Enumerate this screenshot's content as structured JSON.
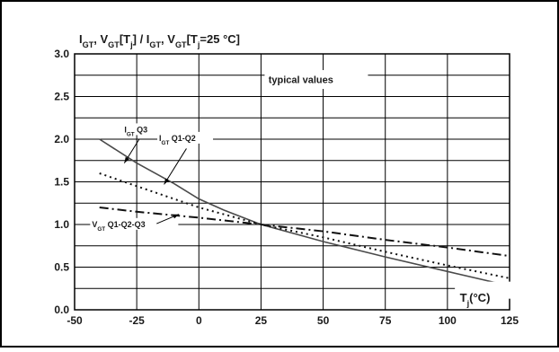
{
  "chart_data": {
    "type": "line",
    "title": {
      "parts": [
        {
          "t": "I",
          "s": false
        },
        {
          "t": "GT",
          "s": true
        },
        {
          "t": ", V",
          "s": false
        },
        {
          "t": "GT",
          "s": true
        },
        {
          "t": "[T",
          "s": false
        },
        {
          "t": "j",
          "s": true
        },
        {
          "t": "] / I",
          "s": false
        },
        {
          "t": "GT",
          "s": true
        },
        {
          "t": ", V",
          "s": false
        },
        {
          "t": "GT",
          "s": true
        },
        {
          "t": "[T",
          "s": false
        },
        {
          "t": "j",
          "s": true
        },
        {
          "t": "=25 °C]",
          "s": false
        }
      ]
    },
    "xlabel": {
      "parts": [
        {
          "t": "T",
          "s": false
        },
        {
          "t": "j",
          "s": true
        },
        {
          "t": "(°C)",
          "s": false
        }
      ]
    },
    "annotation": "typical values",
    "xlim": [
      -50,
      125
    ],
    "ylim": [
      0,
      3
    ],
    "x_ticks": [
      "-50",
      "-25",
      "0",
      "25",
      "50",
      "75",
      "100",
      "125"
    ],
    "y_ticks": [
      "0.0",
      "0.5",
      "1.0",
      "1.5",
      "2.0",
      "2.5",
      "3.0"
    ],
    "grid": true,
    "series": [
      {
        "name": "IGT Q3",
        "label_parts": [
          {
            "t": "I",
            "s": false
          },
          {
            "t": "GT",
            "s": true
          },
          {
            "t": " Q3",
            "s": false
          }
        ],
        "style": "solid",
        "points": [
          [
            -40,
            2.0
          ],
          [
            -25,
            1.72
          ],
          [
            -10,
            1.48
          ],
          [
            0,
            1.3
          ],
          [
            10,
            1.17
          ],
          [
            25,
            1.0
          ],
          [
            50,
            0.8
          ],
          [
            75,
            0.62
          ],
          [
            100,
            0.45
          ],
          [
            125,
            0.28
          ]
        ]
      },
      {
        "name": "IGT Q1-Q2",
        "label_parts": [
          {
            "t": "I",
            "s": false
          },
          {
            "t": "GT",
            "s": true
          },
          {
            "t": " Q1-Q2",
            "s": false
          }
        ],
        "style": "dotted",
        "points": [
          [
            -40,
            1.6
          ],
          [
            -25,
            1.45
          ],
          [
            -10,
            1.3
          ],
          [
            0,
            1.2
          ],
          [
            25,
            1.0
          ],
          [
            50,
            0.85
          ],
          [
            75,
            0.68
          ],
          [
            100,
            0.52
          ],
          [
            125,
            0.37
          ]
        ]
      },
      {
        "name": "VGT Q1-Q2-Q3",
        "label_parts": [
          {
            "t": "V",
            "s": false
          },
          {
            "t": "GT",
            "s": true
          },
          {
            "t": " Q1-Q2-Q3",
            "s": false
          }
        ],
        "style": "dashdot",
        "points": [
          [
            -40,
            1.2
          ],
          [
            -25,
            1.15
          ],
          [
            0,
            1.08
          ],
          [
            25,
            1.0
          ],
          [
            50,
            0.92
          ],
          [
            75,
            0.82
          ],
          [
            100,
            0.73
          ],
          [
            125,
            0.63
          ]
        ]
      }
    ]
  }
}
